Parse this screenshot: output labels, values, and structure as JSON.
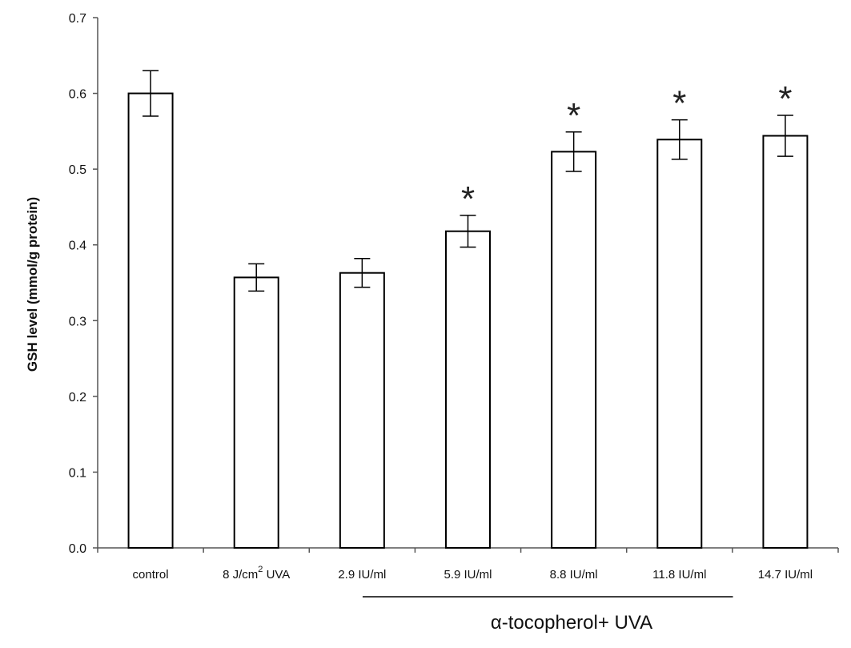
{
  "chart_data": {
    "type": "bar",
    "ylabel": "GSH level (mmol/g protein)",
    "ylim": [
      0,
      0.7
    ],
    "yticks": [
      "0.0",
      "0.1",
      "0.2",
      "0.3",
      "0.4",
      "0.5",
      "0.6",
      "0.7"
    ],
    "categories": [
      "control",
      "8 J/cm2 UVA",
      "2.9 IU/ml",
      "5.9 IU/ml",
      "8.8 IU/ml",
      "11.8 IU/ml",
      "14.7 IU/ml"
    ],
    "category_label_parts": {
      "uva_prefix": "8 J/cm",
      "uva_sup": "2",
      "uva_suffix": " UVA"
    },
    "values": [
      0.6,
      0.357,
      0.363,
      0.418,
      0.523,
      0.539,
      0.544
    ],
    "errors": [
      0.03,
      0.018,
      0.019,
      0.021,
      0.026,
      0.026,
      0.027
    ],
    "significance": [
      "",
      "",
      "",
      "*",
      "*",
      "*",
      "*"
    ],
    "group_label": "α-tocopherol+ UVA",
    "grid": false,
    "colors": {
      "bar_fill": "#ffffff",
      "bar_stroke": "#000000",
      "axis": "#555555"
    }
  }
}
